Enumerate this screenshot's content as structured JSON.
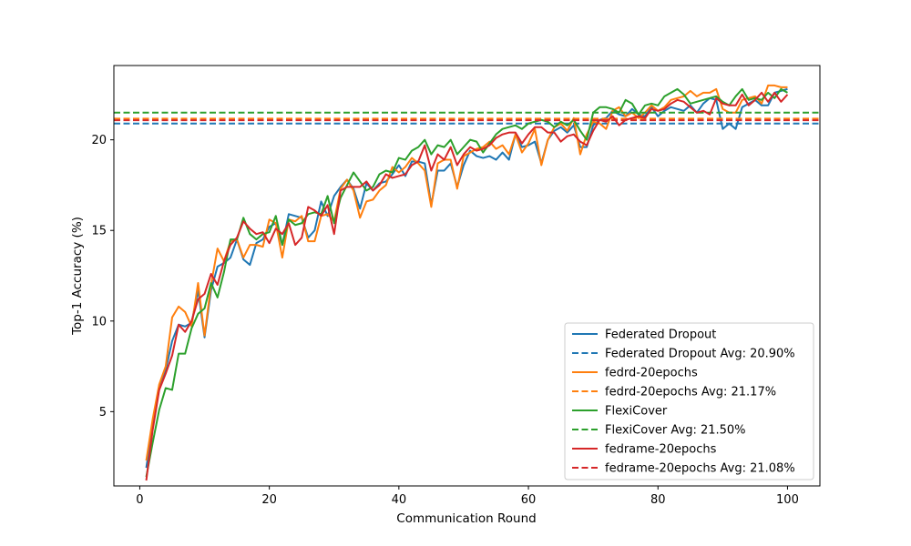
{
  "chart_data": {
    "type": "line",
    "title": "",
    "xlabel": "Communication Round",
    "ylabel": "Top-1 Accuracy (%)",
    "xlim": [
      -4,
      105
    ],
    "ylim": [
      0.9,
      24.1
    ],
    "xticks": [
      0,
      20,
      40,
      60,
      80,
      100
    ],
    "yticks": [
      5,
      10,
      15,
      20
    ],
    "grid": false,
    "legend_position": "lower-right",
    "series": [
      {
        "name": "Federated Dropout",
        "color": "#1f77b4",
        "style": "solid",
        "x_start": 1,
        "values": [
          1.9,
          4.2,
          6.3,
          7.3,
          8.9,
          9.8,
          9.7,
          9.9,
          11.7,
          9.1,
          11.7,
          13.0,
          13.2,
          13.5,
          14.5,
          13.4,
          13.1,
          14.3,
          14.5,
          15.2,
          15.4,
          14.2,
          15.9,
          15.8,
          15.7,
          14.6,
          15.0,
          16.6,
          15.8,
          16.9,
          17.4,
          17.8,
          17.3,
          16.2,
          17.6,
          17.2,
          17.6,
          17.7,
          18.1,
          18.6,
          18.0,
          18.8,
          18.8,
          18.7,
          16.4,
          18.3,
          18.3,
          18.7,
          17.4,
          18.6,
          19.4,
          19.1,
          19.0,
          19.1,
          18.9,
          19.3,
          18.9,
          20.3,
          19.6,
          19.7,
          19.9,
          18.7,
          20.0,
          20.5,
          20.7,
          20.4,
          20.8,
          19.6,
          19.6,
          20.8,
          21.1,
          21.2,
          21.6,
          21.4,
          21.3,
          21.7,
          21.4,
          21.3,
          21.8,
          21.3,
          21.6,
          21.8,
          21.7,
          21.6,
          21.9,
          21.5,
          22.0,
          22.3,
          22.2,
          20.6,
          20.9,
          20.6,
          21.8,
          22.0,
          22.2,
          21.9,
          21.9,
          22.6,
          22.7,
          22.8
        ]
      },
      {
        "name": "Federated Dropout Avg: 20.90%",
        "color": "#1f77b4",
        "style": "dashed",
        "avg": 20.9
      },
      {
        "name": "fedrd-20epochs",
        "color": "#ff7f0e",
        "style": "solid",
        "x_start": 1,
        "values": [
          2.3,
          4.6,
          6.5,
          7.5,
          10.2,
          10.8,
          10.5,
          9.7,
          12.1,
          9.2,
          12.0,
          14.0,
          13.3,
          14.4,
          14.5,
          13.5,
          14.2,
          14.2,
          14.1,
          15.6,
          15.4,
          13.5,
          15.6,
          15.5,
          15.8,
          14.4,
          14.4,
          15.8,
          15.9,
          15.5,
          17.3,
          17.8,
          17.2,
          15.7,
          16.6,
          16.7,
          17.2,
          17.5,
          18.5,
          18.2,
          18.5,
          19.0,
          18.7,
          18.3,
          16.3,
          18.7,
          18.9,
          18.9,
          17.3,
          19.1,
          19.3,
          19.5,
          19.6,
          19.9,
          19.5,
          19.7,
          19.2,
          20.3,
          19.3,
          19.8,
          20.6,
          18.6,
          20.0,
          20.7,
          20.9,
          20.5,
          21.2,
          19.2,
          20.3,
          21.0,
          20.9,
          20.6,
          21.6,
          21.8,
          21.3,
          21.5,
          21.2,
          21.5,
          21.9,
          21.6,
          21.8,
          22.2,
          22.3,
          22.4,
          22.7,
          22.4,
          22.6,
          22.6,
          22.8,
          21.7,
          21.5,
          21.5,
          22.2,
          22.3,
          22.4,
          22.0,
          23.0,
          23.0,
          22.9,
          22.9
        ]
      },
      {
        "name": "fedrd-20epochs Avg: 21.17%",
        "color": "#ff7f0e",
        "style": "dashed",
        "avg": 21.17
      },
      {
        "name": "FlexiCover",
        "color": "#2ca02c",
        "style": "solid",
        "x_start": 1,
        "values": [
          1.4,
          3.3,
          5.1,
          6.3,
          6.2,
          8.2,
          8.2,
          9.6,
          10.4,
          10.7,
          12.1,
          11.3,
          12.7,
          14.5,
          14.5,
          15.7,
          14.8,
          14.5,
          14.8,
          14.9,
          15.8,
          14.2,
          15.6,
          15.3,
          15.4,
          15.9,
          16.0,
          15.9,
          16.9,
          15.4,
          16.8,
          17.5,
          18.2,
          17.7,
          17.2,
          17.4,
          18.1,
          18.3,
          18.2,
          19.0,
          18.9,
          19.4,
          19.6,
          20.0,
          19.2,
          19.7,
          19.6,
          20.0,
          19.2,
          19.6,
          20.0,
          19.9,
          19.3,
          19.8,
          20.3,
          20.6,
          20.7,
          20.8,
          20.6,
          20.9,
          21.0,
          21.1,
          21.0,
          20.7,
          21.0,
          20.8,
          21.1,
          20.5,
          20.0,
          21.5,
          21.8,
          21.8,
          21.7,
          21.5,
          22.2,
          22.0,
          21.4,
          21.9,
          22.0,
          21.9,
          22.4,
          22.6,
          22.8,
          22.5,
          22.0,
          22.1,
          22.2,
          22.3,
          22.4,
          22.1,
          21.9,
          22.4,
          22.8,
          22.2,
          22.3,
          22.2,
          22.6,
          22.3,
          22.8,
          22.6
        ]
      },
      {
        "name": "FlexiCover Avg: 21.50%",
        "color": "#2ca02c",
        "style": "dashed",
        "avg": 21.5
      },
      {
        "name": "fedrame-20epochs",
        "color": "#d62728",
        "style": "solid",
        "x_start": 1,
        "values": [
          1.2,
          4.0,
          6.2,
          7.1,
          8.1,
          9.8,
          9.4,
          10.0,
          11.2,
          11.5,
          12.6,
          12.0,
          13.3,
          14.2,
          14.6,
          15.5,
          15.1,
          14.8,
          14.9,
          14.3,
          15.1,
          14.8,
          15.4,
          14.2,
          14.6,
          16.3,
          16.1,
          15.8,
          16.4,
          14.8,
          17.2,
          17.4,
          17.4,
          17.4,
          17.7,
          17.2,
          17.5,
          18.1,
          17.9,
          18.0,
          18.1,
          18.6,
          18.8,
          19.7,
          18.3,
          19.2,
          18.9,
          19.6,
          18.6,
          19.2,
          19.6,
          19.4,
          19.5,
          19.7,
          20.1,
          20.3,
          20.4,
          20.4,
          19.8,
          20.3,
          20.7,
          20.7,
          20.4,
          20.4,
          19.9,
          20.2,
          20.3,
          19.9,
          19.7,
          20.5,
          21.1,
          21.0,
          21.3,
          20.8,
          21.1,
          21.2,
          21.3,
          21.2,
          21.7,
          21.6,
          21.7,
          22.0,
          22.2,
          22.1,
          21.8,
          21.5,
          21.6,
          21.4,
          22.3,
          22.0,
          21.9,
          21.9,
          22.5,
          21.9,
          22.2,
          22.6,
          22.1,
          22.6,
          22.1,
          22.5
        ]
      },
      {
        "name": "fedrame-20epochs Avg: 21.08%",
        "color": "#d62728",
        "style": "dashed",
        "avg": 21.08
      }
    ]
  }
}
